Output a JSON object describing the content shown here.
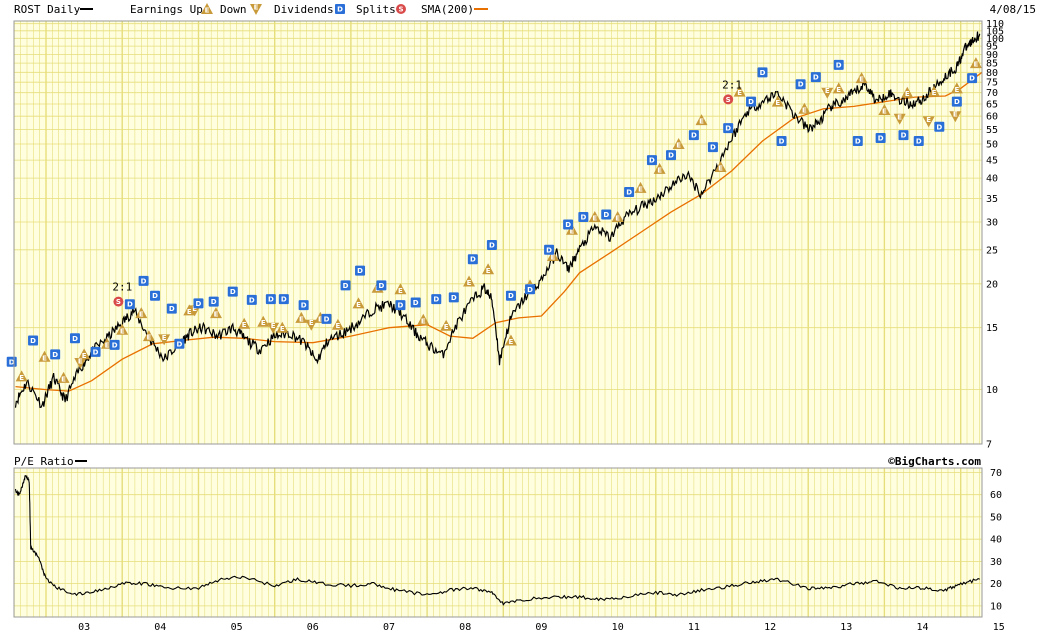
{
  "header": {
    "symbol": "ROST Daily",
    "legend_earnings": "Earnings Up",
    "legend_down": "Down",
    "legend_dividends": "Dividends",
    "legend_splits": "Splits",
    "legend_sma": "SMA(200)",
    "date": "4/08/15"
  },
  "lower_panel": {
    "title": "P/E Ratio",
    "credit": "©BigCharts.com"
  },
  "colors": {
    "panel_bg": "#ffffe0",
    "grid": "#e6de7a",
    "price": "#000000",
    "sma": "#e87000",
    "earnings": "#c89a3a",
    "dividend": "#2a6fd8",
    "split": "#d94a4a"
  },
  "chart_data": [
    {
      "type": "line",
      "title": "ROST Daily",
      "scale": "log",
      "ylim": [
        7,
        112
      ],
      "y_ticks": [
        7,
        10,
        15,
        20,
        25,
        30,
        35,
        40,
        45,
        50,
        55,
        60,
        65,
        70,
        75,
        80,
        85,
        90,
        95,
        100,
        105,
        110
      ],
      "x_ticks": [
        "03",
        "04",
        "05",
        "06",
        "07",
        "08",
        "09",
        "10",
        "11",
        "12",
        "13",
        "14",
        "15"
      ],
      "xlim": [
        2002.58,
        2015.28
      ],
      "series": [
        {
          "name": "ROST Daily",
          "x": [
            2002.6,
            2002.75,
            2002.95,
            2003.1,
            2003.25,
            2003.45,
            2003.6,
            2003.8,
            2004.0,
            2004.15,
            2004.35,
            2004.55,
            2004.75,
            2004.9,
            2005.05,
            2005.25,
            2005.45,
            2005.6,
            2005.8,
            2006.0,
            2006.2,
            2006.4,
            2006.55,
            2006.7,
            2006.9,
            2007.1,
            2007.3,
            2007.5,
            2007.65,
            2007.85,
            2008.0,
            2008.2,
            2008.4,
            2008.6,
            2008.75,
            2008.85,
            2008.95,
            2009.1,
            2009.3,
            2009.5,
            2009.7,
            2009.85,
            2010.0,
            2010.2,
            2010.4,
            2010.6,
            2010.8,
            2011.0,
            2011.2,
            2011.4,
            2011.6,
            2011.8,
            2012.0,
            2012.2,
            2012.4,
            2012.6,
            2012.8,
            2013.0,
            2013.15,
            2013.3,
            2013.45,
            2013.6,
            2013.75,
            2013.9,
            2014.05,
            2014.2,
            2014.35,
            2014.5,
            2014.65,
            2014.8,
            2014.95,
            2015.05,
            2015.15,
            2015.25
          ],
          "values": [
            9.2,
            10.5,
            9.0,
            10.8,
            9.3,
            11.5,
            12.8,
            14.0,
            15.5,
            16.8,
            14.0,
            12.2,
            13.5,
            14.5,
            15.0,
            14.2,
            15.0,
            14.0,
            13.0,
            14.2,
            14.5,
            13.5,
            12.0,
            13.8,
            14.5,
            15.5,
            17.0,
            17.5,
            16.5,
            14.5,
            13.5,
            12.5,
            15.5,
            18.0,
            19.5,
            18.0,
            12.0,
            16.0,
            18.5,
            20.5,
            24.5,
            22.0,
            25.0,
            29.0,
            27.0,
            31.0,
            33.0,
            35.0,
            38.0,
            41.0,
            36.0,
            43.0,
            52.0,
            62.0,
            66.0,
            70.0,
            61.0,
            55.0,
            58.0,
            64.0,
            66.0,
            70.0,
            74.0,
            66.0,
            70.0,
            67.0,
            65.0,
            67.0,
            72.0,
            78.0,
            83.0,
            93.0,
            98.0,
            103.0
          ]
        },
        {
          "name": "SMA(200)",
          "x": [
            2002.6,
            2003.0,
            2003.3,
            2003.6,
            2004.0,
            2004.4,
            2004.8,
            2005.2,
            2005.6,
            2006.0,
            2006.5,
            2007.0,
            2007.5,
            2008.0,
            2008.3,
            2008.6,
            2008.9,
            2009.2,
            2009.5,
            2009.8,
            2010.0,
            2010.4,
            2010.8,
            2011.2,
            2011.6,
            2012.0,
            2012.4,
            2012.8,
            2013.2,
            2013.6,
            2014.0,
            2014.4,
            2014.8,
            2015.0,
            2015.28
          ],
          "values": [
            10.2,
            10.0,
            9.9,
            10.6,
            12.2,
            13.5,
            13.8,
            14.1,
            14.0,
            13.7,
            13.6,
            14.2,
            15.0,
            15.3,
            14.2,
            14.0,
            15.5,
            16.0,
            16.2,
            19.0,
            21.5,
            24.5,
            28.0,
            32.0,
            36.0,
            42.0,
            51.0,
            59.0,
            63.0,
            64.0,
            66.0,
            68.0,
            68.5,
            72.0,
            80.0
          ]
        }
      ],
      "annotations": [
        {
          "type": "split",
          "label": "2:1",
          "x": 2003.95,
          "y": 17.8
        },
        {
          "type": "split",
          "label": "2:1",
          "x": 2011.95,
          "y": 67.0
        }
      ],
      "earnings_up": [
        {
          "x": 2002.68,
          "y": 10.9
        },
        {
          "x": 2002.98,
          "y": 12.4
        },
        {
          "x": 2003.23,
          "y": 10.8
        },
        {
          "x": 2003.5,
          "y": 12.6
        },
        {
          "x": 2003.8,
          "y": 13.5
        },
        {
          "x": 2004.0,
          "y": 14.8
        },
        {
          "x": 2004.25,
          "y": 16.5
        },
        {
          "x": 2004.35,
          "y": 14.2
        },
        {
          "x": 2004.88,
          "y": 16.8
        },
        {
          "x": 2005.23,
          "y": 16.5
        },
        {
          "x": 2005.6,
          "y": 15.4
        },
        {
          "x": 2005.85,
          "y": 15.6
        },
        {
          "x": 2006.1,
          "y": 15.0
        },
        {
          "x": 2006.35,
          "y": 16.0
        },
        {
          "x": 2006.6,
          "y": 16.0
        },
        {
          "x": 2006.83,
          "y": 15.3
        },
        {
          "x": 2007.1,
          "y": 17.6
        },
        {
          "x": 2007.35,
          "y": 19.5
        },
        {
          "x": 2007.65,
          "y": 19.3
        },
        {
          "x": 2007.95,
          "y": 15.8
        },
        {
          "x": 2008.25,
          "y": 15.2
        },
        {
          "x": 2008.55,
          "y": 20.3
        },
        {
          "x": 2008.8,
          "y": 22.0
        },
        {
          "x": 2009.1,
          "y": 13.8
        },
        {
          "x": 2009.35,
          "y": 19.8
        },
        {
          "x": 2009.65,
          "y": 24.0
        },
        {
          "x": 2009.9,
          "y": 28.5
        },
        {
          "x": 2010.2,
          "y": 31.0
        },
        {
          "x": 2010.5,
          "y": 31.0
        },
        {
          "x": 2010.8,
          "y": 37.5
        },
        {
          "x": 2011.05,
          "y": 42.5
        },
        {
          "x": 2011.3,
          "y": 50.0
        },
        {
          "x": 2011.6,
          "y": 58.5
        },
        {
          "x": 2011.85,
          "y": 43.0
        },
        {
          "x": 2012.1,
          "y": 70.5
        },
        {
          "x": 2012.6,
          "y": 66.0
        },
        {
          "x": 2012.95,
          "y": 63.0
        },
        {
          "x": 2013.4,
          "y": 72.0
        },
        {
          "x": 2013.7,
          "y": 77.0
        },
        {
          "x": 2014.0,
          "y": 62.5
        },
        {
          "x": 2014.3,
          "y": 70.0
        },
        {
          "x": 2014.65,
          "y": 70.5
        },
        {
          "x": 2014.95,
          "y": 72.0
        },
        {
          "x": 2015.2,
          "y": 85.0
        }
      ],
      "earnings_down": [
        {
          "x": 2003.45,
          "y": 11.9
        },
        {
          "x": 2004.55,
          "y": 13.9
        },
        {
          "x": 2004.95,
          "y": 16.8
        },
        {
          "x": 2005.98,
          "y": 15.0
        },
        {
          "x": 2006.48,
          "y": 15.3
        },
        {
          "x": 2013.25,
          "y": 70.0
        },
        {
          "x": 2014.2,
          "y": 59.0
        },
        {
          "x": 2014.58,
          "y": 58.0
        },
        {
          "x": 2014.93,
          "y": 60.0
        }
      ],
      "dividends": [
        {
          "x": 2002.55,
          "y": 12.0
        },
        {
          "x": 2002.83,
          "y": 13.8
        },
        {
          "x": 2003.12,
          "y": 12.6
        },
        {
          "x": 2003.38,
          "y": 14.0
        },
        {
          "x": 2003.65,
          "y": 12.8
        },
        {
          "x": 2003.9,
          "y": 13.4
        },
        {
          "x": 2004.1,
          "y": 17.5
        },
        {
          "x": 2004.28,
          "y": 20.4
        },
        {
          "x": 2004.43,
          "y": 18.5
        },
        {
          "x": 2004.65,
          "y": 17.0
        },
        {
          "x": 2004.75,
          "y": 13.5
        },
        {
          "x": 2005.0,
          "y": 17.6
        },
        {
          "x": 2005.2,
          "y": 17.8
        },
        {
          "x": 2005.45,
          "y": 19.0
        },
        {
          "x": 2005.7,
          "y": 18.0
        },
        {
          "x": 2005.95,
          "y": 18.1
        },
        {
          "x": 2006.12,
          "y": 18.1
        },
        {
          "x": 2006.38,
          "y": 17.4
        },
        {
          "x": 2006.68,
          "y": 15.9
        },
        {
          "x": 2006.93,
          "y": 19.8
        },
        {
          "x": 2007.12,
          "y": 21.8
        },
        {
          "x": 2007.4,
          "y": 19.8
        },
        {
          "x": 2007.65,
          "y": 17.4
        },
        {
          "x": 2007.85,
          "y": 17.7
        },
        {
          "x": 2008.12,
          "y": 18.1
        },
        {
          "x": 2008.35,
          "y": 18.3
        },
        {
          "x": 2008.6,
          "y": 23.5
        },
        {
          "x": 2008.85,
          "y": 25.8
        },
        {
          "x": 2009.1,
          "y": 18.5
        },
        {
          "x": 2009.35,
          "y": 19.3
        },
        {
          "x": 2009.6,
          "y": 25.0
        },
        {
          "x": 2009.85,
          "y": 29.5
        },
        {
          "x": 2010.05,
          "y": 31.0
        },
        {
          "x": 2010.35,
          "y": 31.5
        },
        {
          "x": 2010.65,
          "y": 36.5
        },
        {
          "x": 2010.95,
          "y": 45.0
        },
        {
          "x": 2011.2,
          "y": 46.5
        },
        {
          "x": 2011.5,
          "y": 53.0
        },
        {
          "x": 2011.75,
          "y": 49.0
        },
        {
          "x": 2011.95,
          "y": 55.5
        },
        {
          "x": 2012.25,
          "y": 66.0
        },
        {
          "x": 2012.4,
          "y": 80.0
        },
        {
          "x": 2012.65,
          "y": 51.0
        },
        {
          "x": 2012.9,
          "y": 74.0
        },
        {
          "x": 2013.1,
          "y": 77.5
        },
        {
          "x": 2013.4,
          "y": 84.0
        },
        {
          "x": 2013.65,
          "y": 51.0
        },
        {
          "x": 2013.95,
          "y": 52.0
        },
        {
          "x": 2014.25,
          "y": 53.0
        },
        {
          "x": 2014.45,
          "y": 51.0
        },
        {
          "x": 2014.72,
          "y": 56.0
        },
        {
          "x": 2014.95,
          "y": 66.0
        },
        {
          "x": 2015.15,
          "y": 77.0
        }
      ]
    },
    {
      "type": "line",
      "title": "P/E Ratio",
      "ylim": [
        5,
        72
      ],
      "y_ticks": [
        10,
        20,
        30,
        40,
        50,
        60,
        70
      ],
      "x_ticks": [
        "03",
        "04",
        "05",
        "06",
        "07",
        "08",
        "09",
        "10",
        "11",
        "12",
        "13",
        "14",
        "15"
      ],
      "xlim": [
        2002.58,
        2015.28
      ],
      "series": [
        {
          "name": "P/E Ratio",
          "x": [
            2002.6,
            2002.65,
            2002.7,
            2002.73,
            2002.78,
            2002.8,
            2002.9,
            2003.0,
            2003.15,
            2003.4,
            2003.7,
            2004.0,
            2004.3,
            2004.6,
            2005.0,
            2005.3,
            2005.6,
            2006.0,
            2006.3,
            2006.6,
            2007.0,
            2007.3,
            2007.6,
            2008.0,
            2008.3,
            2008.6,
            2008.85,
            2009.0,
            2009.3,
            2009.7,
            2010.0,
            2010.3,
            2010.6,
            2011.0,
            2011.3,
            2011.6,
            2012.0,
            2012.3,
            2012.6,
            2013.0,
            2013.3,
            2013.6,
            2013.9,
            2014.2,
            2014.5,
            2014.8,
            2015.0,
            2015.25
          ],
          "values": [
            62,
            60,
            65,
            69,
            66,
            36,
            32,
            22,
            18,
            15,
            17,
            20,
            20,
            18,
            18,
            22,
            23,
            19,
            22,
            20,
            19,
            20,
            17,
            15,
            17,
            18,
            16,
            11,
            13,
            14,
            14,
            13,
            14,
            16,
            15,
            17,
            19,
            21,
            22,
            18,
            18,
            20,
            21,
            18,
            18,
            17,
            20,
            22
          ]
        }
      ]
    }
  ]
}
